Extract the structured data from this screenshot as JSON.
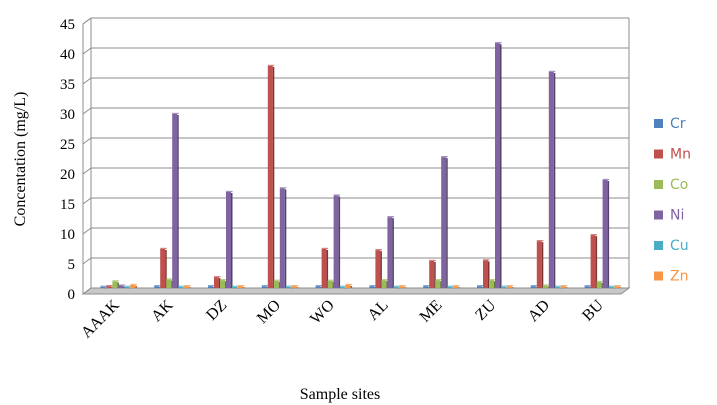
{
  "chart_data": {
    "type": "bar",
    "title": "",
    "xlabel": "Sample sites",
    "ylabel": "Concentation (mg/L)",
    "ylim": [
      0,
      45
    ],
    "yticks": [
      0,
      5,
      10,
      15,
      20,
      25,
      30,
      35,
      40,
      45
    ],
    "grid": true,
    "legend_position": "right",
    "categories": [
      "AAAK",
      "AK",
      "DZ",
      "MO",
      "WO",
      "AL",
      "ME",
      "ZU",
      "AD",
      "BU"
    ],
    "series": [
      {
        "name": "Cr",
        "color": "#4F81BD",
        "values": [
          0.2,
          0.3,
          0.3,
          0.3,
          0.3,
          0.3,
          0.3,
          0.3,
          0.3,
          0.3
        ]
      },
      {
        "name": "Mn",
        "color": "#C0504D",
        "values": [
          0.3,
          6.5,
          1.8,
          37.0,
          6.5,
          6.3,
          4.5,
          4.6,
          7.8,
          8.8
        ]
      },
      {
        "name": "Co",
        "color": "#9BBB59",
        "values": [
          1.1,
          1.4,
          1.3,
          1.2,
          1.2,
          1.3,
          1.3,
          1.3,
          0.4,
          1.0
        ]
      },
      {
        "name": "Ni",
        "color": "#8064A2",
        "values": [
          0.4,
          29.0,
          16.0,
          16.6,
          15.4,
          11.8,
          21.8,
          40.8,
          36.0,
          18.0
        ]
      },
      {
        "name": "Cu",
        "color": "#4BACC6",
        "values": [
          0.2,
          0.2,
          0.2,
          0.2,
          0.2,
          0.2,
          0.2,
          0.2,
          0.2,
          0.2
        ]
      },
      {
        "name": "Zn",
        "color": "#F79646",
        "values": [
          0.5,
          0.3,
          0.3,
          0.3,
          0.5,
          0.3,
          0.3,
          0.3,
          0.3,
          0.3
        ]
      }
    ]
  }
}
